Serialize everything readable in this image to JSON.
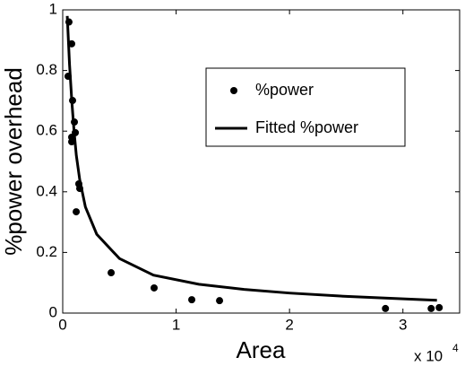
{
  "chart_data": {
    "type": "scatter",
    "xlabel": "Area",
    "ylabel": "%power overhead",
    "x_multiplier": {
      "base": "x 10",
      "exponent": "4"
    },
    "xlim": [
      0,
      3.5
    ],
    "ylim": [
      0,
      1
    ],
    "xticks": [
      0,
      1,
      2,
      3
    ],
    "yticks": [
      0,
      0.2,
      0.4,
      0.6,
      0.8,
      1
    ],
    "grid": false,
    "legend": true,
    "series": [
      {
        "name": "%power",
        "type": "scatter",
        "color": "#000000",
        "x": [
          0.055,
          0.079,
          0.047,
          0.087,
          0.103,
          0.079,
          0.079,
          0.111,
          0.142,
          0.15,
          0.119,
          0.427,
          0.806,
          1.138,
          1.383,
          2.846,
          3.249,
          3.32
        ],
        "values": [
          0.96,
          0.888,
          0.781,
          0.701,
          0.63,
          0.58,
          0.565,
          0.595,
          0.426,
          0.411,
          0.334,
          0.133,
          0.083,
          0.044,
          0.041,
          0.015,
          0.015,
          0.018
        ]
      },
      {
        "name": "Fitted %power",
        "type": "line",
        "color": "#000000",
        "x": [
          0.04,
          0.06,
          0.08,
          0.1,
          0.12,
          0.15,
          0.2,
          0.3,
          0.5,
          0.8,
          1.2,
          1.6,
          2.0,
          2.5,
          3.0,
          3.3
        ],
        "values": [
          0.98,
          0.82,
          0.7,
          0.6,
          0.52,
          0.44,
          0.35,
          0.26,
          0.18,
          0.125,
          0.095,
          0.078,
          0.066,
          0.055,
          0.047,
          0.042
        ]
      }
    ]
  }
}
